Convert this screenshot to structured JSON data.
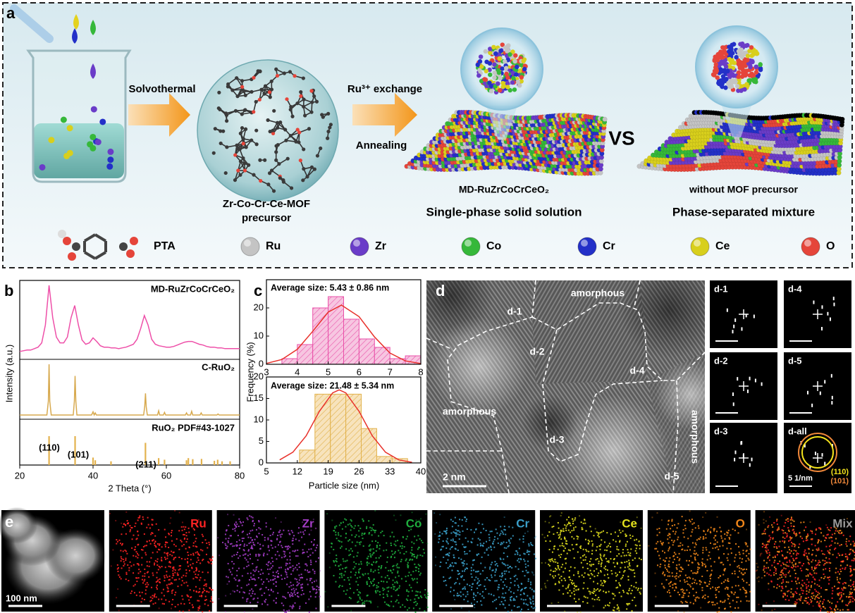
{
  "figure": {
    "panel_a": {
      "label": "a",
      "steps": {
        "solvothermal": "Solvothermal",
        "exchange": "Ru³⁺ exchange",
        "annealing": "Annealing"
      },
      "precursor": [
        "Zr-Co-Cr-Ce-MOF",
        "precursor"
      ],
      "products": [
        {
          "name": "MD-RuZrCoCrCeO₂",
          "description": "Single-phase solid solution"
        },
        {
          "name": "without MOF precursor",
          "description": "Phase-separated mixture"
        }
      ],
      "vs": "VS",
      "legend": [
        {
          "label": "PTA"
        },
        {
          "label": "Ru",
          "color": "#c4c4c4"
        },
        {
          "label": "Zr",
          "color": "#6a3cc8"
        },
        {
          "label": "Co",
          "color": "#36b83a"
        },
        {
          "label": "Cr",
          "color": "#2330c8"
        },
        {
          "label": "Ce",
          "color": "#d8cf1c"
        },
        {
          "label": "O",
          "color": "#e5453a"
        }
      ]
    },
    "panel_d": {
      "label": "d",
      "regions": [
        "amorphous",
        "amorphous",
        "amorphous",
        "d-1",
        "d-2",
        "d-3",
        "d-4",
        "d-5"
      ],
      "scale_bar": "2 nm",
      "insets": [
        {
          "label": "d-1"
        },
        {
          "label": "d-4"
        },
        {
          "label": "d-2"
        },
        {
          "label": "d-5"
        },
        {
          "label": "d-3"
        },
        {
          "label": "d-all",
          "scale_bar": "5 1/nm",
          "rings": [
            {
              "label": "(110)",
              "color": "#f3e21c"
            },
            {
              "label": "(101)",
              "color": "#f0883a"
            }
          ]
        }
      ]
    },
    "panel_e": {
      "label": "e",
      "scale_bar": "100 nm",
      "maps": [
        {
          "label": "Ru",
          "color": "#ff2424"
        },
        {
          "label": "Zr",
          "color": "#a23cc4"
        },
        {
          "label": "Co",
          "color": "#1fae3e"
        },
        {
          "label": "Cr",
          "color": "#3a9ec8"
        },
        {
          "label": "Ce",
          "color": "#e2e01e"
        },
        {
          "label": "O",
          "color": "#f0861a"
        },
        {
          "label": "Mix",
          "color": "#9a9a9a"
        }
      ]
    }
  },
  "chart_data": [
    {
      "type": "line",
      "panel_label": "b",
      "xlabel": "2 Theta (°)",
      "ylabel": "Intensity (a.u.)",
      "xlim": [
        20,
        80
      ],
      "xticks": [
        20,
        40,
        60,
        80
      ],
      "ylim": [
        0,
        100
      ],
      "series": [
        {
          "name": "MD-RuZrCoCrCeO₂",
          "color": "#ee4fa8",
          "x": [
            20,
            21,
            22,
            23,
            24,
            25,
            26,
            27,
            28,
            29,
            30,
            31,
            32,
            33,
            34,
            35,
            36,
            37,
            38,
            39,
            40,
            41,
            42,
            43,
            44,
            45,
            46,
            47,
            48,
            49,
            50,
            51,
            52,
            53,
            54,
            55,
            56,
            57,
            58,
            59,
            60,
            61,
            62,
            63,
            64,
            65,
            66,
            67,
            68,
            69,
            70,
            71,
            72,
            73,
            74,
            75,
            76,
            77,
            78,
            79,
            80
          ],
          "values": [
            8,
            9,
            10,
            10,
            12,
            14,
            20,
            45,
            100,
            55,
            28,
            20,
            20,
            28,
            55,
            72,
            45,
            24,
            18,
            20,
            27,
            22,
            16,
            14,
            14,
            13,
            13,
            12,
            13,
            14,
            16,
            18,
            25,
            40,
            58,
            45,
            25,
            18,
            16,
            15,
            14,
            14,
            15,
            17,
            19,
            21,
            22,
            22,
            20,
            18,
            17,
            15,
            14,
            14,
            13,
            13,
            12,
            12,
            12,
            12,
            12
          ]
        },
        {
          "name": "C-RuO₂",
          "color": "#d7a94e",
          "x": [
            20,
            27.4,
            27.8,
            28.0,
            28.2,
            28.6,
            34.6,
            34.9,
            35.1,
            35.3,
            35.6,
            39.6,
            40.0,
            40.3,
            40.6,
            40.9,
            53.8,
            54.1,
            54.3,
            54.5,
            54.8,
            57.6,
            57.9,
            58.2,
            59.2,
            59.5,
            59.8,
            65.2,
            65.5,
            65.8,
            66.6,
            66.9,
            67.2,
            69.2,
            69.5,
            69.8,
            73.8,
            74.1,
            74.4,
            80
          ],
          "values": [
            4,
            4,
            30,
            100,
            30,
            4,
            4,
            30,
            78,
            30,
            4,
            4,
            10,
            4,
            8,
            4,
            4,
            20,
            45,
            20,
            4,
            4,
            12,
            4,
            4,
            9,
            4,
            4,
            8,
            4,
            4,
            11,
            4,
            4,
            8,
            4,
            4,
            6,
            4,
            4
          ]
        }
      ],
      "reference": {
        "name": "RuO₂ PDF#43-1027",
        "color": "#e3b24e",
        "x": [
          28.0,
          35.1,
          40.0,
          40.6,
          44.9,
          54.3,
          57.9,
          59.5,
          65.5,
          66.0,
          67.2,
          69.6,
          73.1,
          74.0,
          75.2,
          77.4
        ],
        "values": [
          100,
          100,
          20,
          10,
          6,
          75,
          18,
          12,
          10,
          18,
          14,
          15,
          8,
          12,
          6,
          6
        ]
      },
      "peak_labels": [
        "(110)",
        "(101)",
        "(211)"
      ]
    },
    {
      "type": "histogram",
      "panel_label": "c",
      "title": "Average size: 5.43 ± 0.86 nm",
      "ylabel": "Frequency (%)",
      "color": "#e94fa8",
      "bins": [
        3.5,
        4,
        4.5,
        5,
        5.5,
        6,
        6.5,
        7,
        7.5,
        8
      ],
      "values": [
        2,
        7,
        20,
        24,
        16,
        9,
        6,
        2,
        3
      ],
      "fit": {
        "color": "#e8302a",
        "x": [
          3,
          3.5,
          4,
          4.5,
          5,
          5.43,
          6,
          6.5,
          7,
          7.5,
          8
        ],
        "values": [
          0.3,
          1.7,
          5.3,
          11.7,
          18.5,
          21,
          16.9,
          9.7,
          4,
          1.2,
          0.24
        ]
      },
      "xlim": [
        3,
        8
      ],
      "xticks": [
        3,
        4,
        5,
        6,
        7,
        8
      ],
      "ylim": [
        0,
        30
      ],
      "yticks": [
        0,
        10,
        20
      ]
    },
    {
      "type": "histogram",
      "title": "Average size: 21.48 ± 5.34 nm",
      "xlabel": "Particle size (nm)",
      "color": "#e2b24c",
      "bins": [
        12.5,
        16,
        19.5,
        23,
        26.5,
        30,
        33.5,
        37
      ],
      "values": [
        3,
        16,
        16,
        16,
        8,
        1.5,
        1
      ],
      "fit": {
        "color": "#e8302a",
        "x": [
          8,
          11,
          14,
          17,
          20,
          21.5,
          23,
          26,
          29,
          32,
          35,
          38
        ],
        "values": [
          0.7,
          2.5,
          6.3,
          12,
          16.3,
          17,
          16.3,
          12,
          6.3,
          2.5,
          0.7,
          0.15
        ]
      },
      "xlim": [
        5,
        40
      ],
      "xticks": [
        5,
        12,
        19,
        26,
        33,
        40
      ],
      "ylim": [
        0,
        20
      ],
      "yticks": [
        0,
        5,
        10,
        15,
        20
      ]
    }
  ]
}
